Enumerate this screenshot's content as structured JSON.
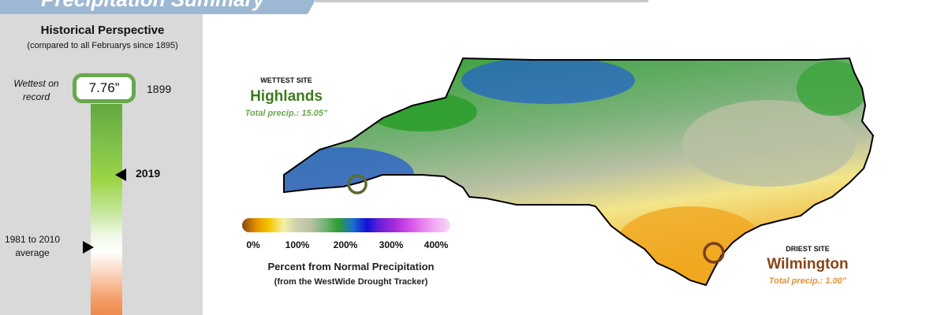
{
  "banner": {
    "title": "Precipitation Summary"
  },
  "perspective": {
    "title": "Historical Perspective",
    "subtitle": "(compared to all Februarys since 1895)",
    "wettest_label": "Wettest on record",
    "wettest_value": "7.76”",
    "wettest_year": "1899",
    "current_year": "2019",
    "average_label": "1981 to 2010 average"
  },
  "wettest_site": {
    "caption": "WETTEST SITE",
    "name": "Highlands",
    "total": "Total precip.: 15.05”"
  },
  "driest_site": {
    "caption": "DRIEST SITE",
    "name": "Wilmington",
    "total": "Total precip.: 1.00”"
  },
  "legend": {
    "ticks": [
      "0%",
      "100%",
      "200%",
      "300%",
      "400%"
    ],
    "title": "Percent from Normal Precipitation",
    "subtitle": "(from the WestWide Drought Tracker)"
  },
  "colors": {
    "banner": "#9db8d3",
    "wet_site": "#3d7a1f",
    "dry_site": "#8b4513",
    "wet_total": "#6aa84f",
    "dry_total": "#e69138"
  }
}
